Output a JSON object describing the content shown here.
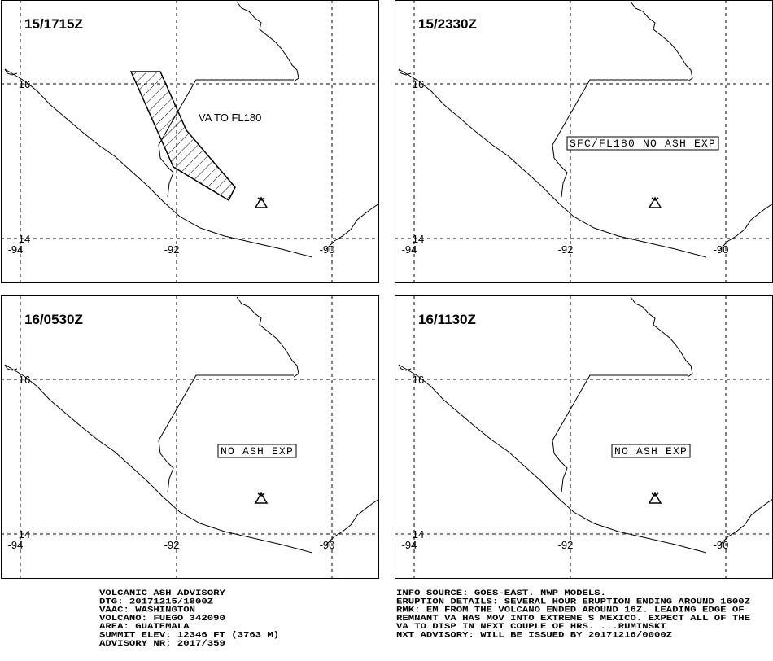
{
  "panels": [
    {
      "time": "15/1715Z",
      "annotation": "VA TO FL180"
    },
    {
      "time": "15/2330Z",
      "annotation": "SFC/FL180 NO ASH EXP"
    },
    {
      "time": "16/0530Z",
      "annotation": "NO ASH EXP"
    },
    {
      "time": "16/1130Z",
      "annotation": "NO ASH EXP"
    }
  ],
  "grid": {
    "longitudes": [
      "-94",
      "-92",
      "-90"
    ],
    "latitudes": [
      "16",
      "14"
    ]
  },
  "advisory_left": [
    "VOLCANIC ASH ADVISORY",
    "DTG: 20171215/1800Z",
    "VAAC: WASHINGTON",
    "VOLCANO: FUEGO 342090",
    "AREA: GUATEMALA",
    "SUMMIT ELEV: 12346 FT (3763 M)",
    "ADVISORY NR: 2017/359"
  ],
  "advisory_right": [
    "INFO SOURCE: GOES-EAST. NWP MODELS.",
    "ERUPTION DETAILS: SEVERAL HOUR ERUPTION ENDING AROUND 1600Z",
    "RMK: EM FROM THE VOLCANO ENDED AROUND 16Z. LEADING EDGE OF",
    "REMNANT VA HAS MOV INTO EXTREME S MEXICO. EXPECT ALL OF THE",
    "VA TO DISP IN NEXT COUPLE OF HRS. ...RUMINSKI",
    "NXT ADVISORY: WILL BE ISSUED BY 20171216/0000Z"
  ]
}
